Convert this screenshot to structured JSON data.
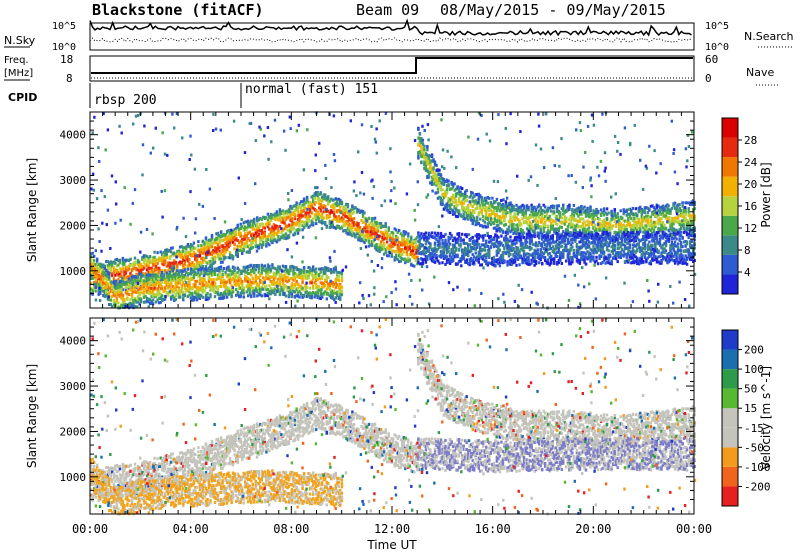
{
  "header": {
    "station": "Blackstone (fitACF)",
    "beam": "Beam 09",
    "date_range": "08/May/2015 - 09/May/2015"
  },
  "top_panel": {
    "left_label": "N.Sky",
    "right_label": "N.Search",
    "left_ticks": [
      "10^5",
      "10^0"
    ],
    "right_ticks": [
      "10^5",
      "10^0"
    ]
  },
  "freq_panel": {
    "left_label_1": "Freq.",
    "left_label_2": "[MHz]",
    "left_ticks": [
      "18",
      "8"
    ],
    "right_label": "Nave",
    "right_ticks": [
      "60",
      "0"
    ]
  },
  "cpid": {
    "label": "CPID",
    "modes": [
      {
        "name": "rbsp 200",
        "start_hour": 0
      },
      {
        "name": "normal (fast) 151",
        "start_hour": 6
      }
    ]
  },
  "chart_data": [
    {
      "type": "heatmap",
      "title": "",
      "quantity": "Power",
      "ylabel": "Slant Range [km]",
      "xlabel": "Time UT",
      "xticks": [
        "00:00",
        "04:00",
        "08:00",
        "12:00",
        "16:00",
        "20:00",
        "00:00"
      ],
      "xlim_hours": [
        0,
        24
      ],
      "yticks": [
        1000,
        2000,
        3000,
        4000
      ],
      "ylim": [
        180,
        4500
      ],
      "colorbar": {
        "label": "Power [dB]",
        "ticks": [
          "4",
          "8",
          "12",
          "16",
          "20",
          "24",
          "28"
        ],
        "range": [
          0,
          30
        ]
      },
      "bands": [
        {
          "name": "main band early",
          "points": [
            [
              0,
              800
            ],
            [
              1,
              900
            ],
            [
              2,
              1000
            ],
            [
              4,
              1250
            ],
            [
              6,
              1700
            ],
            [
              8,
              2100
            ],
            [
              9,
              2400
            ],
            [
              10,
              2200
            ],
            [
              12,
              1600
            ],
            [
              13,
              1400
            ]
          ],
          "peak_db": 26
        },
        {
          "name": "main band late",
          "points": [
            [
              13,
              3800
            ],
            [
              14,
              2700
            ],
            [
              15,
              2400
            ],
            [
              17,
              2100
            ],
            [
              19,
              2100
            ],
            [
              21,
              2000
            ],
            [
              24,
              2200
            ]
          ],
          "peak_db": 18
        },
        {
          "name": "lower band late",
          "points": [
            [
              13,
              1500
            ],
            [
              16,
              1450
            ],
            [
              20,
              1500
            ],
            [
              24,
              1500
            ]
          ],
          "peak_db": 8
        },
        {
          "name": "near range early",
          "points": [
            [
              0,
              1100
            ],
            [
              1,
              400
            ],
            [
              2,
              600
            ],
            [
              4,
              700
            ],
            [
              7,
              800
            ],
            [
              10,
              700
            ]
          ],
          "peak_db": 22
        }
      ]
    },
    {
      "type": "heatmap",
      "title": "",
      "quantity": "Velocity",
      "ylabel": "Slant Range [km]",
      "xlabel": "Time UT",
      "xticks": [
        "00:00",
        "04:00",
        "08:00",
        "12:00",
        "16:00",
        "20:00",
        "00:00"
      ],
      "xlim_hours": [
        0,
        24
      ],
      "yticks": [
        1000,
        2000,
        3000,
        4000
      ],
      "ylim": [
        180,
        4500
      ],
      "colorbar": {
        "label": "Velocity [m s^-1]",
        "ticks": [
          "200",
          "100",
          "50",
          "15",
          "-15",
          "-50",
          "-100",
          "-200"
        ],
        "range": [
          -250,
          250
        ]
      },
      "ground_scatter_color": "#c4c4bc"
    }
  ],
  "colors": {
    "power_scale": [
      "#1f24d8",
      "#2e5bd0",
      "#3c8a88",
      "#4aa84b",
      "#b6d23e",
      "#f2b100",
      "#f07800",
      "#e62a10",
      "#d90000"
    ],
    "velocity_scale": [
      "#e62020",
      "#f0641e",
      "#f29b1c",
      "#c4c4bc",
      "#c4c4bc",
      "#58b832",
      "#2f9a4a",
      "#1c6fae",
      "#1f3cc8"
    ]
  }
}
